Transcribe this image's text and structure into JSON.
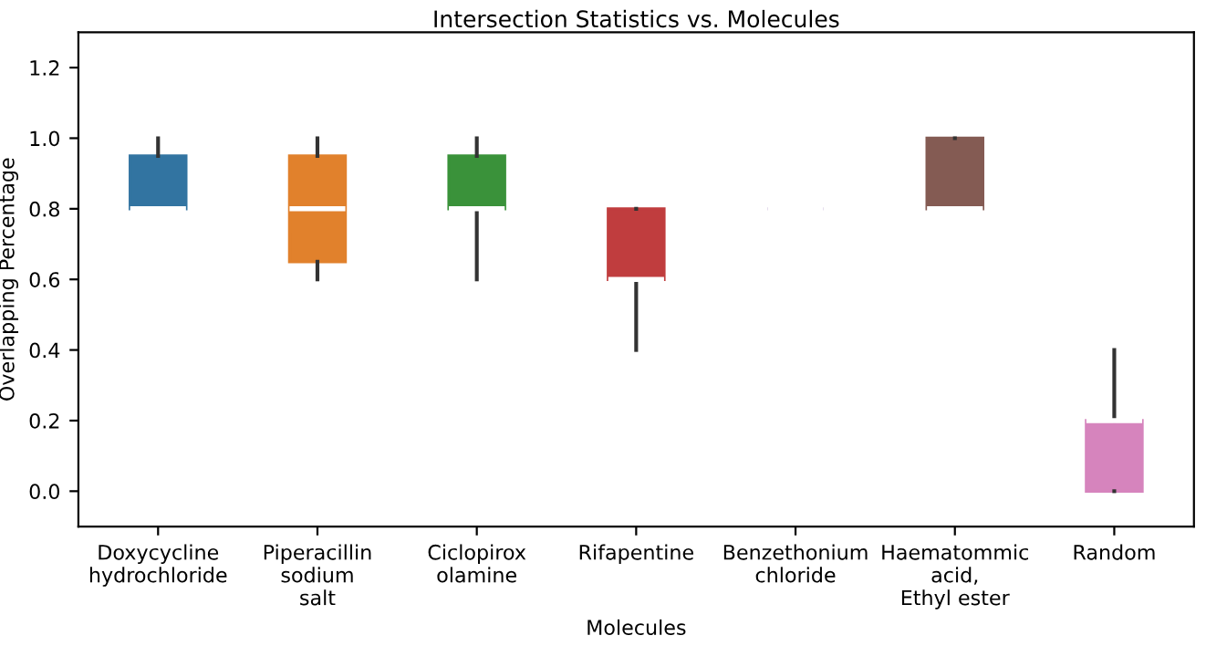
{
  "chart_data": {
    "type": "box",
    "title": "Intersection Statistics vs. Molecules",
    "xlabel": "Molecules",
    "ylabel": "Overlapping Percentage",
    "categories": [
      "Doxycycline\nhydrochloride",
      "Piperacillin\nsodium\nsalt",
      "Ciclopirox\nolamine",
      "Rifapentine",
      "Benzethonium\nchloride",
      "Haematommic\nacid,\nEthyl ester",
      "Random"
    ],
    "colors": [
      "#3274a1",
      "#e1812c",
      "#3a923a",
      "#c03d3e",
      "#9372b2",
      "#845b53",
      "#d684bd"
    ],
    "boxes": [
      {
        "low": 0.8,
        "q1": 0.8,
        "median": 0.8,
        "q3": 0.95,
        "high": 1.0
      },
      {
        "low": 0.6,
        "q1": 0.65,
        "median": 0.8,
        "q3": 0.95,
        "high": 1.0
      },
      {
        "low": 0.6,
        "q1": 0.8,
        "median": 0.8,
        "q3": 0.95,
        "high": 1.0
      },
      {
        "low": 0.4,
        "q1": 0.6,
        "median": 0.6,
        "q3": 0.8,
        "high": 0.8
      },
      {
        "low": 0.8,
        "q1": 0.8,
        "median": 0.8,
        "q3": 0.8,
        "high": 0.8
      },
      {
        "low": 0.8,
        "q1": 0.8,
        "median": 0.8,
        "q3": 1.0,
        "high": 1.0
      },
      {
        "low": 0.0,
        "q1": 0.0,
        "median": 0.2,
        "q3": 0.2,
        "high": 0.4
      }
    ],
    "ylim": [
      -0.1,
      1.3
    ],
    "yticks": [
      {
        "value": 0,
        "label": "0.0"
      },
      0.2,
      0.4,
      0.6,
      0.8,
      {
        "value": 1,
        "label": "1.0"
      },
      1.2
    ]
  }
}
